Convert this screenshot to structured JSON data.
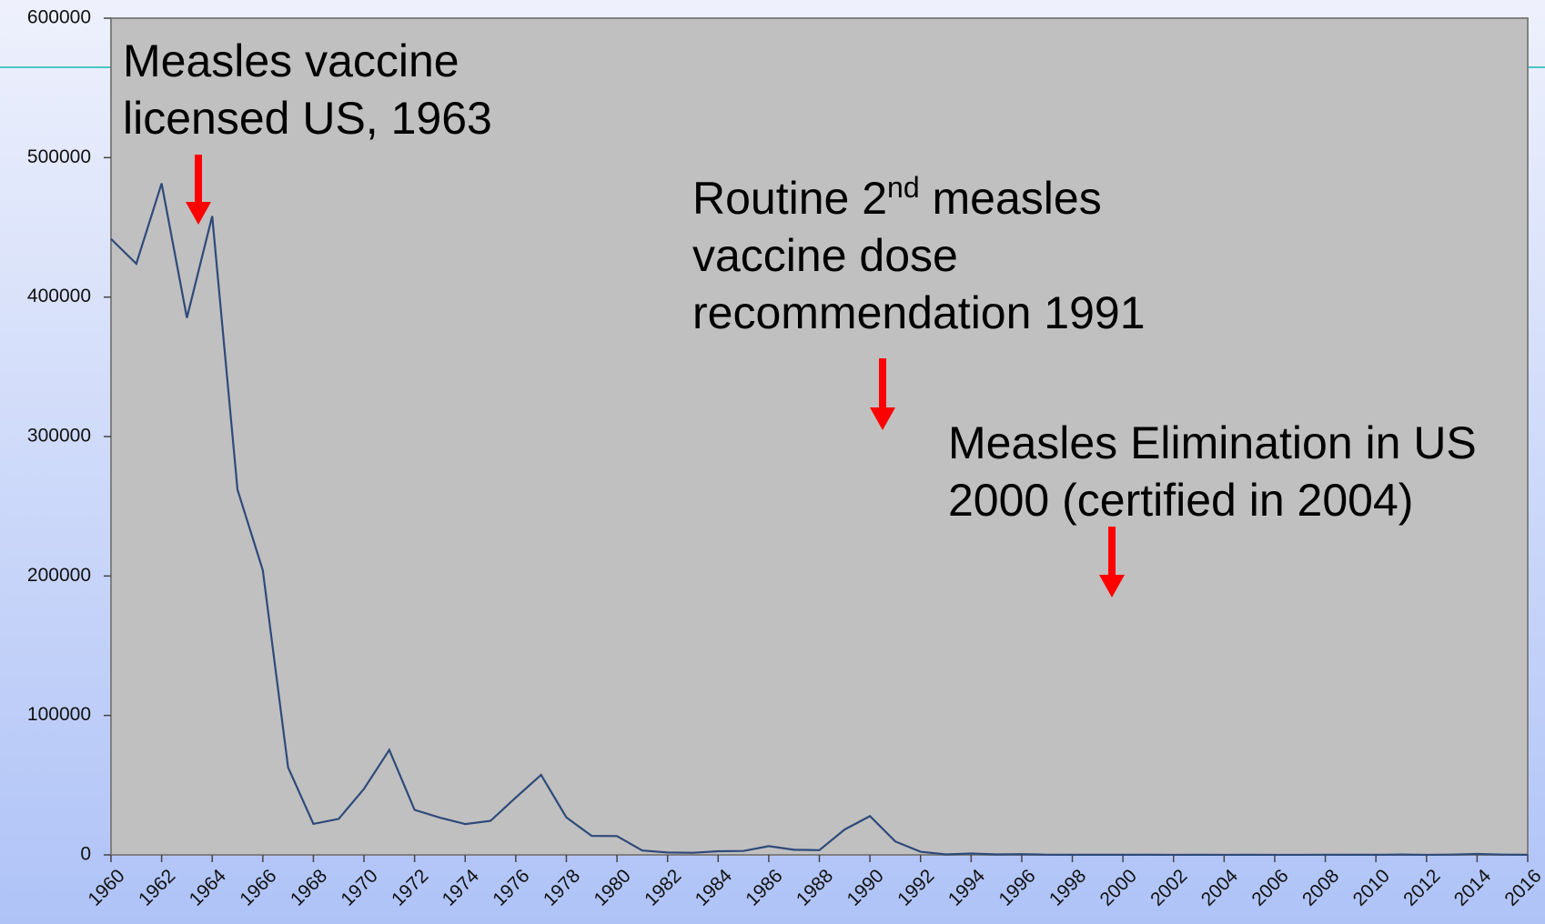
{
  "chart_data": {
    "type": "line",
    "x": [
      1960,
      1961,
      1962,
      1963,
      1964,
      1965,
      1966,
      1967,
      1968,
      1969,
      1970,
      1971,
      1972,
      1973,
      1974,
      1975,
      1976,
      1977,
      1978,
      1979,
      1980,
      1981,
      1982,
      1983,
      1984,
      1985,
      1986,
      1987,
      1988,
      1989,
      1990,
      1991,
      1992,
      1993,
      1994,
      1995,
      1996,
      1997,
      1998,
      1999,
      2000,
      2001,
      2002,
      2003,
      2004,
      2005,
      2006,
      2007,
      2008,
      2009,
      2010,
      2011,
      2012,
      2013,
      2014,
      2015,
      2016
    ],
    "values": [
      441703,
      423919,
      481530,
      385156,
      458083,
      261904,
      204136,
      62705,
      22231,
      25826,
      47351,
      75290,
      32275,
      26690,
      22094,
      24374,
      41126,
      57345,
      26871,
      13597,
      13506,
      3124,
      1714,
      1497,
      2587,
      2822,
      6282,
      3655,
      3396,
      18193,
      27786,
      9643,
      2237,
      312,
      963,
      309,
      508,
      138,
      100,
      100,
      86,
      116,
      44,
      56,
      37,
      66,
      55,
      43,
      140,
      71,
      63,
      220,
      55,
      187,
      667,
      188,
      86
    ],
    "color": "#2e4a7a",
    "xlim": [
      1960,
      2016
    ],
    "xticks": [
      1960,
      1962,
      1964,
      1966,
      1968,
      1970,
      1972,
      1974,
      1976,
      1978,
      1980,
      1982,
      1984,
      1986,
      1988,
      1990,
      1992,
      1994,
      1996,
      1998,
      2000,
      2002,
      2004,
      2006,
      2008,
      2010,
      2012,
      2014,
      2016
    ],
    "ylim": [
      0,
      600000
    ],
    "yticks": [
      0,
      100000,
      200000,
      300000,
      400000,
      500000,
      600000
    ],
    "annotations": [
      {
        "lines": [
          "Measles vaccine",
          "licensed US, 1963"
        ]
      },
      {
        "lines": [
          {
            "before": "Routine 2",
            "sup": "nd",
            "after": " measles"
          },
          "vaccine dose",
          "recommendation 1991"
        ]
      },
      {
        "lines": [
          "Measles Elimination in US",
          "2000 (certified in 2004)"
        ]
      }
    ]
  }
}
